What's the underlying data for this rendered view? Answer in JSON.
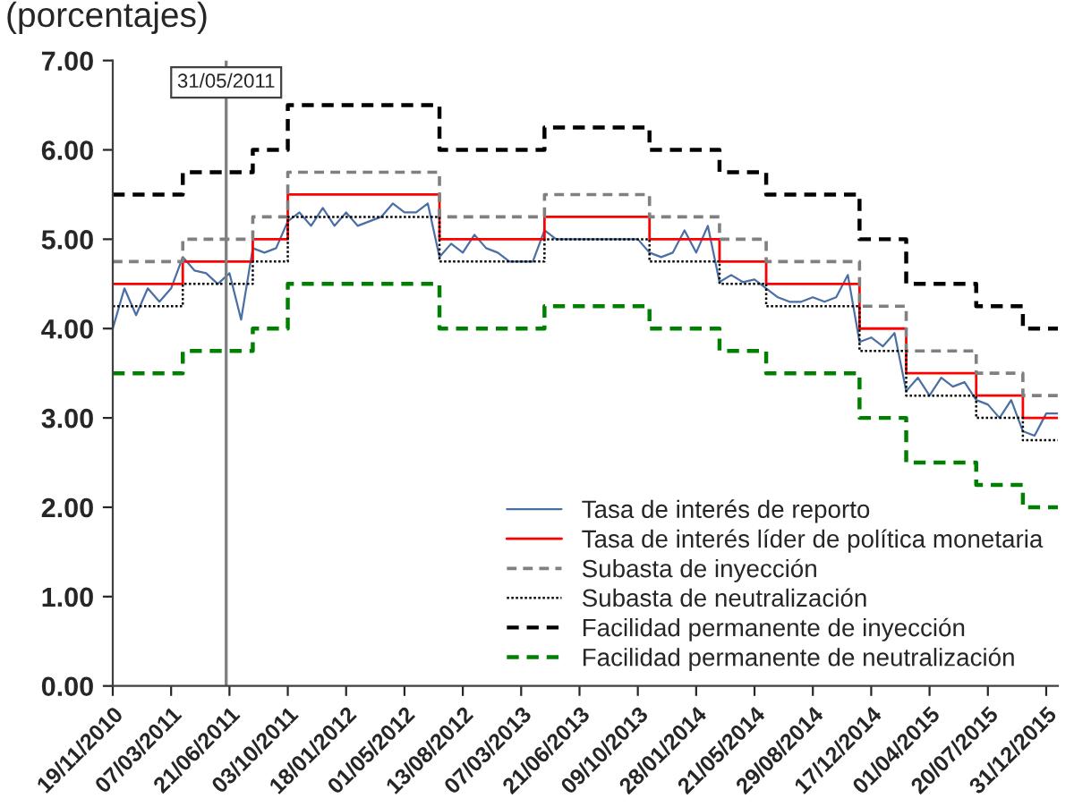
{
  "chart_data": {
    "type": "step",
    "title": "(porcentajes)",
    "categories": [
      "19/11/2010",
      null,
      null,
      null,
      null,
      "07/03/2011",
      null,
      null,
      null,
      null,
      "21/06/2011",
      null,
      null,
      null,
      null,
      "03/10/2011",
      null,
      null,
      null,
      null,
      "18/01/2012",
      null,
      null,
      null,
      null,
      "01/05/2012",
      null,
      null,
      null,
      null,
      "13/08/2012",
      null,
      null,
      null,
      null,
      "07/03/2013",
      null,
      null,
      null,
      null,
      "21/06/2013",
      null,
      null,
      null,
      null,
      "09/10/2013",
      null,
      null,
      null,
      null,
      "28/01/2014",
      null,
      null,
      null,
      null,
      "21/05/2014",
      null,
      null,
      null,
      null,
      "29/08/2014",
      null,
      null,
      null,
      null,
      "17/12/2014",
      null,
      null,
      null,
      null,
      "01/04/2015",
      null,
      null,
      null,
      null,
      "20/07/2015",
      null,
      null,
      null,
      null,
      "31/12/2015",
      null
    ],
    "ylim": [
      0,
      7
    ],
    "yticks": [
      {
        "value": 0,
        "label": "0.00"
      },
      {
        "value": 1,
        "label": "1.00"
      },
      {
        "value": 2,
        "label": "2.00"
      },
      {
        "value": 3,
        "label": "3.00"
      },
      {
        "value": 4,
        "label": "4.00"
      },
      {
        "value": 5,
        "label": "5.00"
      },
      {
        "value": 6,
        "label": "6.00"
      },
      {
        "value": 7,
        "label": "7.00"
      }
    ],
    "grid": false,
    "legend": "bottom right",
    "annotations": [
      "31/05/2011"
    ],
    "series": [
      {
        "name": "Tasa de interés de reporto",
        "type": "line",
        "color": "#4a6fa5",
        "line_style": "solid",
        "values": [
          4.0,
          4.45,
          4.15,
          4.45,
          4.3,
          4.45,
          4.8,
          4.65,
          4.62,
          4.5,
          4.62,
          4.1,
          4.9,
          4.85,
          4.9,
          5.2,
          5.3,
          5.15,
          5.35,
          5.15,
          5.3,
          5.15,
          5.2,
          5.25,
          5.4,
          5.3,
          5.3,
          5.4,
          4.8,
          4.95,
          4.85,
          5.05,
          4.9,
          4.85,
          4.75,
          4.75,
          4.75,
          5.1,
          5.0,
          5.0,
          5.0,
          5.0,
          5.0,
          5.0,
          5.0,
          5.0,
          4.85,
          4.8,
          4.85,
          5.1,
          4.85,
          5.15,
          4.52,
          4.6,
          4.52,
          4.55,
          4.45,
          4.35,
          4.3,
          4.3,
          4.35,
          4.3,
          4.35,
          4.6,
          3.85,
          3.9,
          3.8,
          3.95,
          3.3,
          3.45,
          3.25,
          3.45,
          3.35,
          3.4,
          3.2,
          3.15,
          3.0,
          3.2,
          2.85,
          2.8,
          3.05,
          3.05
        ]
      },
      {
        "name": "Tasa de interés líder de política monetaria",
        "color": "#ff0000",
        "line_style": "solid",
        "values": [
          4.5,
          4.5,
          4.5,
          4.5,
          4.5,
          4.5,
          4.75,
          4.75,
          4.75,
          4.75,
          4.75,
          4.75,
          5.0,
          5.0,
          5.0,
          5.5,
          5.5,
          5.5,
          5.5,
          5.5,
          5.5,
          5.5,
          5.5,
          5.5,
          5.5,
          5.5,
          5.5,
          5.5,
          5.0,
          5.0,
          5.0,
          5.0,
          5.0,
          5.0,
          5.0,
          5.0,
          5.0,
          5.25,
          5.25,
          5.25,
          5.25,
          5.25,
          5.25,
          5.25,
          5.25,
          5.25,
          5.0,
          5.0,
          5.0,
          5.0,
          5.0,
          5.0,
          4.75,
          4.75,
          4.75,
          4.75,
          4.5,
          4.5,
          4.5,
          4.5,
          4.5,
          4.5,
          4.5,
          4.5,
          4.0,
          4.0,
          4.0,
          4.0,
          3.5,
          3.5,
          3.5,
          3.5,
          3.5,
          3.5,
          3.25,
          3.25,
          3.25,
          3.25,
          3.0,
          3.0,
          3.0,
          3.0
        ]
      },
      {
        "name": "Subasta de inyección",
        "color": "#808080",
        "line_style": "dashed",
        "values": [
          4.75,
          4.75,
          4.75,
          4.75,
          4.75,
          4.75,
          5.0,
          5.0,
          5.0,
          5.0,
          5.0,
          5.0,
          5.25,
          5.25,
          5.25,
          5.75,
          5.75,
          5.75,
          5.75,
          5.75,
          5.75,
          5.75,
          5.75,
          5.75,
          5.75,
          5.75,
          5.75,
          5.75,
          5.25,
          5.25,
          5.25,
          5.25,
          5.25,
          5.25,
          5.25,
          5.25,
          5.25,
          5.5,
          5.5,
          5.5,
          5.5,
          5.5,
          5.5,
          5.5,
          5.5,
          5.5,
          5.25,
          5.25,
          5.25,
          5.25,
          5.25,
          5.25,
          5.0,
          5.0,
          5.0,
          5.0,
          4.75,
          4.75,
          4.75,
          4.75,
          4.75,
          4.75,
          4.75,
          4.75,
          4.25,
          4.25,
          4.25,
          4.25,
          3.75,
          3.75,
          3.75,
          3.75,
          3.75,
          3.75,
          3.5,
          3.5,
          3.5,
          3.5,
          3.25,
          3.25,
          3.25,
          3.25
        ]
      },
      {
        "name": "Subasta de neutralización",
        "color": "#000000",
        "line_style": "dotted",
        "values": [
          4.25,
          4.25,
          4.25,
          4.25,
          4.25,
          4.25,
          4.5,
          4.5,
          4.5,
          4.5,
          4.5,
          4.5,
          4.75,
          4.75,
          4.75,
          5.25,
          5.25,
          5.25,
          5.25,
          5.25,
          5.25,
          5.25,
          5.25,
          5.25,
          5.25,
          5.25,
          5.25,
          5.25,
          4.75,
          4.75,
          4.75,
          4.75,
          4.75,
          4.75,
          4.75,
          4.75,
          4.75,
          5.0,
          5.0,
          5.0,
          5.0,
          5.0,
          5.0,
          5.0,
          5.0,
          5.0,
          4.75,
          4.75,
          4.75,
          4.75,
          4.75,
          4.75,
          4.5,
          4.5,
          4.5,
          4.5,
          4.25,
          4.25,
          4.25,
          4.25,
          4.25,
          4.25,
          4.25,
          4.25,
          3.75,
          3.75,
          3.75,
          3.75,
          3.25,
          3.25,
          3.25,
          3.25,
          3.25,
          3.25,
          3.0,
          3.0,
          3.0,
          3.0,
          2.75,
          2.75,
          2.75,
          2.75
        ]
      },
      {
        "name": "Facilidad permanente de inyección",
        "color": "#000000",
        "line_style": "dashed",
        "values": [
          5.5,
          5.5,
          5.5,
          5.5,
          5.5,
          5.5,
          5.75,
          5.75,
          5.75,
          5.75,
          5.75,
          5.75,
          6.0,
          6.0,
          6.0,
          6.5,
          6.5,
          6.5,
          6.5,
          6.5,
          6.5,
          6.5,
          6.5,
          6.5,
          6.5,
          6.5,
          6.5,
          6.5,
          6.0,
          6.0,
          6.0,
          6.0,
          6.0,
          6.0,
          6.0,
          6.0,
          6.0,
          6.25,
          6.25,
          6.25,
          6.25,
          6.25,
          6.25,
          6.25,
          6.25,
          6.25,
          6.0,
          6.0,
          6.0,
          6.0,
          6.0,
          6.0,
          5.75,
          5.75,
          5.75,
          5.75,
          5.5,
          5.5,
          5.5,
          5.5,
          5.5,
          5.5,
          5.5,
          5.5,
          5.0,
          5.0,
          5.0,
          5.0,
          4.5,
          4.5,
          4.5,
          4.5,
          4.5,
          4.5,
          4.25,
          4.25,
          4.25,
          4.25,
          4.0,
          4.0,
          4.0,
          4.0
        ]
      },
      {
        "name": "Facilidad permanente de neutralización",
        "color": "#008000",
        "line_style": "dashed",
        "values": [
          3.5,
          3.5,
          3.5,
          3.5,
          3.5,
          3.5,
          3.75,
          3.75,
          3.75,
          3.75,
          3.75,
          3.75,
          4.0,
          4.0,
          4.0,
          4.5,
          4.5,
          4.5,
          4.5,
          4.5,
          4.5,
          4.5,
          4.5,
          4.5,
          4.5,
          4.5,
          4.5,
          4.5,
          4.0,
          4.0,
          4.0,
          4.0,
          4.0,
          4.0,
          4.0,
          4.0,
          4.0,
          4.25,
          4.25,
          4.25,
          4.25,
          4.25,
          4.25,
          4.25,
          4.25,
          4.25,
          4.0,
          4.0,
          4.0,
          4.0,
          4.0,
          4.0,
          3.75,
          3.75,
          3.75,
          3.75,
          3.5,
          3.5,
          3.5,
          3.5,
          3.5,
          3.5,
          3.5,
          3.5,
          3.0,
          3.0,
          3.0,
          3.0,
          2.5,
          2.5,
          2.5,
          2.5,
          2.5,
          2.5,
          2.25,
          2.25,
          2.25,
          2.25,
          2.0,
          2.0,
          2.0,
          2.0
        ]
      }
    ]
  }
}
